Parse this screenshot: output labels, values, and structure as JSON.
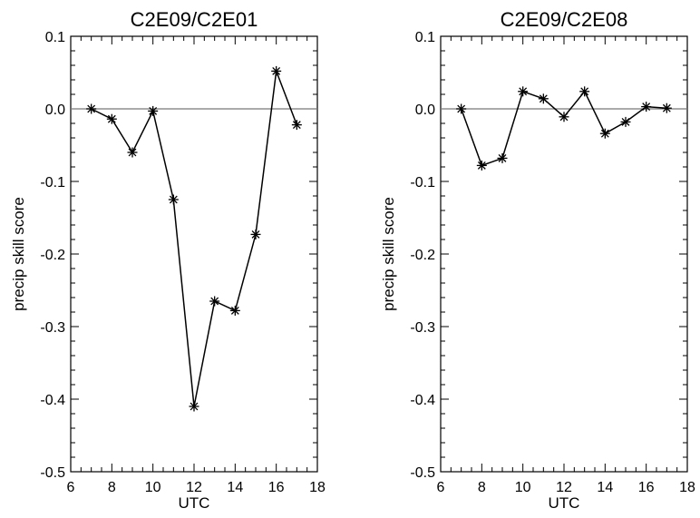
{
  "chart_data": [
    {
      "type": "line",
      "title": "C2E09/C2E01",
      "xlabel": "UTC",
      "ylabel": "precip skill score",
      "xlim": [
        6,
        18
      ],
      "ylim": [
        -0.5,
        0.1
      ],
      "xticks": [
        6,
        8,
        10,
        12,
        14,
        16,
        18
      ],
      "yticks": [
        0.1,
        0.0,
        -0.1,
        -0.2,
        -0.3,
        -0.4,
        -0.5
      ],
      "ytick_labels": [
        "0.1",
        "0.0",
        "-0.1",
        "-0.2",
        "-0.3",
        "-0.4",
        "-0.5"
      ],
      "reference_line": 0.0,
      "marker": "asterisk",
      "x": [
        7,
        8,
        9,
        10,
        11,
        12,
        13,
        14,
        15,
        16,
        17
      ],
      "y": [
        0.0,
        -0.014,
        -0.06,
        -0.003,
        -0.125,
        -0.41,
        -0.265,
        -0.278,
        -0.173,
        0.052,
        -0.022
      ]
    },
    {
      "type": "line",
      "title": "C2E09/C2E08",
      "xlabel": "UTC",
      "ylabel": "precip skill score",
      "xlim": [
        6,
        18
      ],
      "ylim": [
        -0.5,
        0.1
      ],
      "xticks": [
        6,
        8,
        10,
        12,
        14,
        16,
        18
      ],
      "yticks": [
        0.1,
        0.0,
        -0.1,
        -0.2,
        -0.3,
        -0.4,
        -0.5
      ],
      "ytick_labels": [
        "0.1",
        "0.0",
        "-0.1",
        "-0.2",
        "-0.3",
        "-0.4",
        "-0.5"
      ],
      "reference_line": 0.0,
      "marker": "asterisk",
      "x": [
        7,
        8,
        9,
        10,
        11,
        12,
        13,
        14,
        15,
        16,
        17
      ],
      "y": [
        0.0,
        -0.078,
        -0.068,
        0.024,
        0.014,
        -0.011,
        0.024,
        -0.034,
        -0.018,
        0.003,
        0.001
      ]
    }
  ]
}
